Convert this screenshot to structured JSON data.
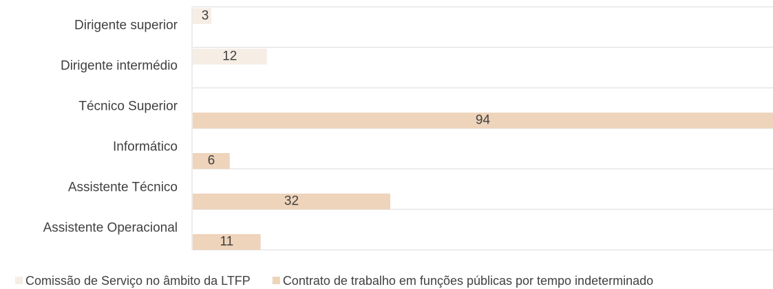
{
  "chart_data": {
    "type": "bar",
    "orientation": "horizontal",
    "categories": [
      "Dirigente superior",
      "Dirigente intermédio",
      "Técnico Superior",
      "Informático",
      "Assistente Técnico",
      "Assistente Operacional"
    ],
    "series": [
      {
        "name": "Comissão de Serviço no âmbito da LTFP",
        "color": "#f6ede5",
        "values": [
          3,
          12,
          null,
          null,
          null,
          null
        ]
      },
      {
        "name": "Contrato de trabalho em funções públicas por tempo indeterminado",
        "color": "#eed4bb",
        "values": [
          null,
          null,
          94,
          6,
          32,
          11
        ]
      }
    ],
    "xlim": [
      0,
      94
    ],
    "legend": "bottom"
  }
}
